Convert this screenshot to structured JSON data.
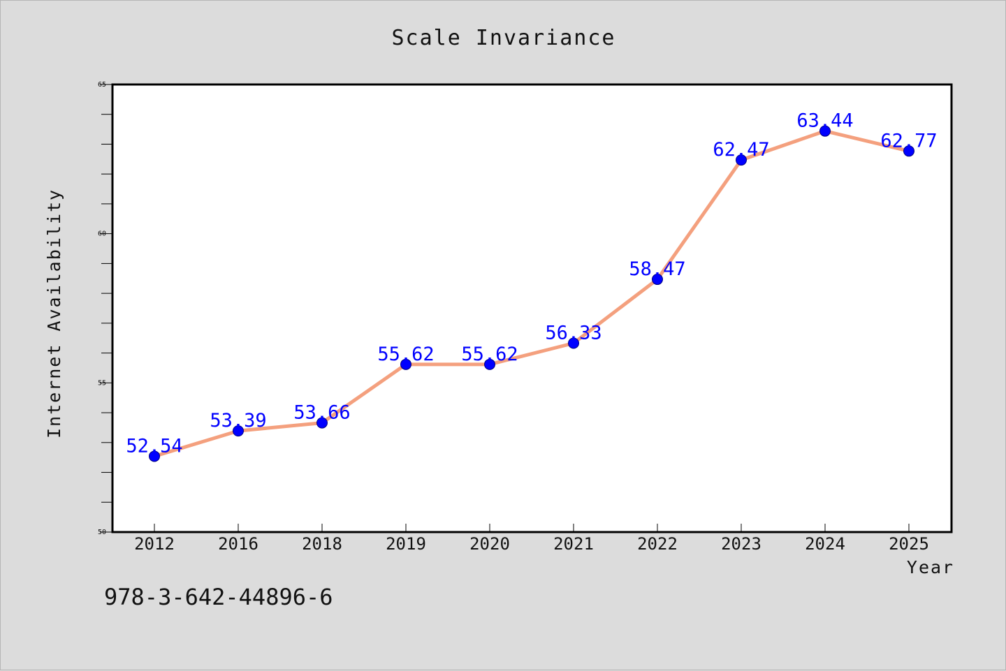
{
  "chart_data": {
    "type": "line",
    "title": "Scale Invariance",
    "xlabel": "Year",
    "ylabel": "Internet Availability",
    "categories": [
      "2012",
      "2016",
      "2018",
      "2019",
      "2020",
      "2021",
      "2022",
      "2023",
      "2024",
      "2025"
    ],
    "series": [
      {
        "values": [
          52.54,
          53.39,
          53.66,
          55.62,
          55.62,
          56.33,
          58.47,
          62.47,
          63.44,
          62.77
        ],
        "data_labels": [
          "52.54",
          "53.39",
          "53.66",
          "55.62",
          "55.62",
          "56.33",
          "58.47",
          "62.47",
          "63.44",
          "62.77"
        ]
      }
    ],
    "ylim": [
      50,
      65
    ],
    "yticks": [
      "50",
      "55",
      "60",
      "65"
    ],
    "grid": false,
    "legend": "none",
    "colors": {
      "line": "#f4a07e",
      "marker": "#0000ff",
      "marker_edge": "#000080",
      "data_label": "#0000ff",
      "background": "#dcdcdc",
      "plot_area": "#ffffff"
    }
  },
  "footer": {
    "text": "978-3-642-44896-6"
  }
}
